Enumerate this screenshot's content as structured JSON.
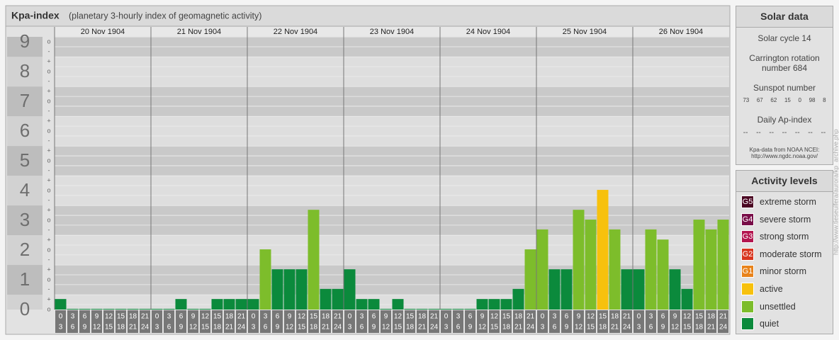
{
  "chart_data": {
    "type": "bar",
    "title": "Kpa-index",
    "subtitle": "(planetary 3-hourly index of geomagnetic activity)",
    "ylim": [
      0,
      9.17
    ],
    "yticks": [
      0,
      1,
      2,
      3,
      4,
      5,
      6,
      7,
      8,
      9
    ],
    "minor_ticks": [
      {
        "value": 0,
        "label": "o"
      },
      {
        "value": 0.33,
        "label": "+"
      },
      {
        "value": 0.67,
        "label": "-"
      },
      {
        "value": 1,
        "label": "o"
      },
      {
        "value": 1.33,
        "label": "+"
      },
      {
        "value": 1.67,
        "label": "-"
      },
      {
        "value": 2,
        "label": "o"
      },
      {
        "value": 2.33,
        "label": "+"
      },
      {
        "value": 2.67,
        "label": "-"
      },
      {
        "value": 3,
        "label": "o"
      },
      {
        "value": 3.33,
        "label": "+"
      },
      {
        "value": 3.67,
        "label": "-"
      },
      {
        "value": 4,
        "label": "o"
      },
      {
        "value": 4.33,
        "label": "+"
      },
      {
        "value": 4.67,
        "label": "-"
      },
      {
        "value": 5,
        "label": "o"
      },
      {
        "value": 5.33,
        "label": "+"
      },
      {
        "value": 5.67,
        "label": "-"
      },
      {
        "value": 6,
        "label": "o"
      },
      {
        "value": 6.33,
        "label": "+"
      },
      {
        "value": 6.67,
        "label": "-"
      },
      {
        "value": 7,
        "label": "o"
      },
      {
        "value": 7.33,
        "label": "+"
      },
      {
        "value": 7.67,
        "label": "-"
      },
      {
        "value": 8,
        "label": "o"
      },
      {
        "value": 8.33,
        "label": "+"
      },
      {
        "value": 8.67,
        "label": "-"
      },
      {
        "value": 9,
        "label": "o"
      }
    ],
    "hours": [
      0,
      3,
      6,
      9,
      12,
      15,
      18,
      21,
      24
    ],
    "days": [
      {
        "date": "20 Nov 1904",
        "values": [
          0.33,
          0,
          0,
          0,
          0,
          0,
          0,
          0
        ],
        "colors": [
          "#0b8a3c",
          "#0b8a3c",
          "#0b8a3c",
          "#0b8a3c",
          "#0b8a3c",
          "#0b8a3c",
          "#0b8a3c",
          "#0b8a3c"
        ]
      },
      {
        "date": "21 Nov 1904",
        "values": [
          0,
          0,
          0.33,
          0,
          0,
          0.33,
          0.33,
          0.33
        ],
        "colors": [
          "#0b8a3c",
          "#0b8a3c",
          "#0b8a3c",
          "#0b8a3c",
          "#0b8a3c",
          "#0b8a3c",
          "#0b8a3c",
          "#0b8a3c"
        ]
      },
      {
        "date": "22 Nov 1904",
        "values": [
          0.33,
          2,
          1.33,
          1.33,
          1.33,
          3.33,
          0.67,
          0.67
        ],
        "colors": [
          "#0b8a3c",
          "#7dbd2b",
          "#0b8a3c",
          "#0b8a3c",
          "#0b8a3c",
          "#7dbd2b",
          "#0b8a3c",
          "#0b8a3c"
        ]
      },
      {
        "date": "23 Nov 1904",
        "values": [
          1.33,
          0.33,
          0.33,
          0,
          0.33,
          0,
          0,
          0
        ],
        "colors": [
          "#0b8a3c",
          "#0b8a3c",
          "#0b8a3c",
          "#0b8a3c",
          "#0b8a3c",
          "#0b8a3c",
          "#0b8a3c",
          "#0b8a3c"
        ]
      },
      {
        "date": "24 Nov 1904",
        "values": [
          0,
          0,
          0,
          0.33,
          0.33,
          0.33,
          0.67,
          2
        ],
        "colors": [
          "#0b8a3c",
          "#0b8a3c",
          "#0b8a3c",
          "#0b8a3c",
          "#0b8a3c",
          "#0b8a3c",
          "#0b8a3c",
          "#7dbd2b"
        ]
      },
      {
        "date": "25 Nov 1904",
        "values": [
          2.67,
          1.33,
          1.33,
          3.33,
          3,
          4,
          2.67,
          1.33
        ],
        "colors": [
          "#7dbd2b",
          "#0b8a3c",
          "#0b8a3c",
          "#7dbd2b",
          "#7dbd2b",
          "#f7c10d",
          "#7dbd2b",
          "#0b8a3c"
        ]
      },
      {
        "date": "26 Nov 1904",
        "values": [
          1.33,
          2.67,
          2.33,
          1.33,
          0.67,
          3,
          2.67,
          3
        ],
        "colors": [
          "#0b8a3c",
          "#7dbd2b",
          "#7dbd2b",
          "#0b8a3c",
          "#0b8a3c",
          "#7dbd2b",
          "#7dbd2b",
          "#7dbd2b"
        ]
      }
    ],
    "source_url": "http://www.tieseuifera/aurora/kp_archive.php"
  },
  "solar_data": {
    "title": "Solar data",
    "solar_cycle": "Solar cycle 14",
    "carrington": "Carrington rotation number 684",
    "sunspot_title": "Sunspot number",
    "sunspot_numbers": [
      73,
      67,
      62,
      15,
      0,
      98,
      8
    ],
    "ap_title": "Daily Ap-index",
    "ap_values": [
      "--",
      "--",
      "--",
      "--",
      "--",
      "--",
      "--"
    ],
    "source": "Kpa-data from NOAA NCEI: http://www.ngdc.noaa.gov/"
  },
  "activity_levels": {
    "title": "Activity levels",
    "items": [
      {
        "badge": "G5",
        "label": "extreme storm",
        "color": "#4a0622"
      },
      {
        "badge": "G4",
        "label": "severe storm",
        "color": "#780d48"
      },
      {
        "badge": "G3",
        "label": "strong storm",
        "color": "#b3154f"
      },
      {
        "badge": "G2",
        "label": "moderate storm",
        "color": "#d8361f"
      },
      {
        "badge": "G1",
        "label": "minor storm",
        "color": "#e8821a"
      },
      {
        "label": "active",
        "color": "#f7c10d"
      },
      {
        "label": "unsettled",
        "color": "#7dbd2b"
      },
      {
        "label": "quiet",
        "color": "#0b8a3c"
      }
    ]
  }
}
